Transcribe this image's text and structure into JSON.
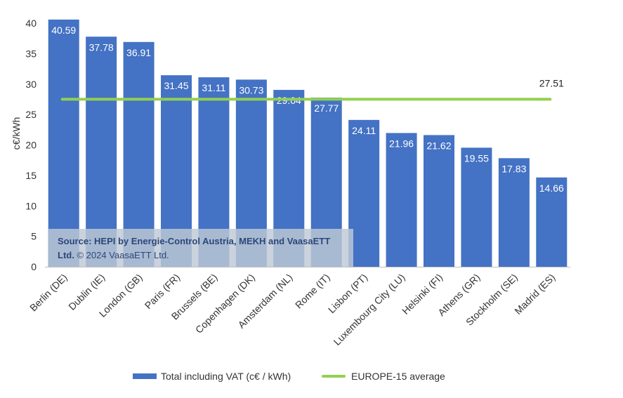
{
  "chart_data": {
    "type": "bar",
    "title": "",
    "xlabel": "",
    "ylabel": "c€/kWh",
    "ylim": [
      0,
      40
    ],
    "yticks": [
      0,
      5,
      10,
      15,
      20,
      25,
      30,
      35,
      40
    ],
    "categories": [
      "Berlin (DE)",
      "Dublin (IE)",
      "London (GB)",
      "Paris (FR)",
      "Brussels (BE)",
      "Copenhagen (DK)",
      "Amsterdam (NL)",
      "Rome (IT)",
      "Lisbon (PT)",
      "Luxembourg City (LU)",
      "Helsinki (FI)",
      "Athens (GR)",
      "Stockholm (SE)",
      "Madrid (ES)"
    ],
    "series": [
      {
        "name": "Total including VAT (c€ / kWh)",
        "type": "bar",
        "color": "#4472c4",
        "values": [
          40.59,
          37.78,
          36.91,
          31.45,
          31.11,
          30.73,
          29.04,
          27.77,
          24.11,
          21.96,
          21.62,
          19.55,
          17.83,
          14.66
        ],
        "labels": [
          "40.59",
          "37.78",
          "36.91",
          "31.45",
          "31.11",
          "30.73",
          "29.04",
          "27.77",
          "24.11",
          "21.96",
          "21.62",
          "19.55",
          "17.83",
          "14.66"
        ]
      },
      {
        "name": "EUROPE-15 average",
        "type": "line",
        "color": "#92d050",
        "value": 27.51,
        "label": "27.51"
      }
    ],
    "grid": false,
    "legend": "bottom-center"
  },
  "source": {
    "bold": "Source: HEPI by Energie-Control Austria, MEKH and VaasaETT Ltd.",
    "rest": " © 2024 VaasaETT Ltd."
  }
}
